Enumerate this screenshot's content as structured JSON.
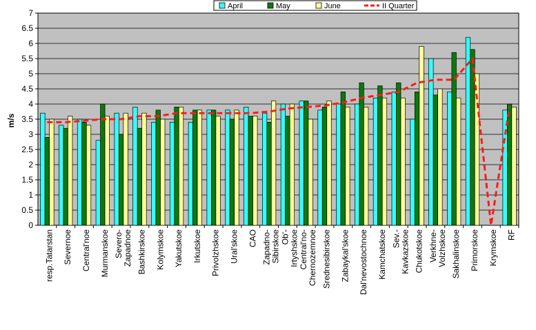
{
  "chart_data": {
    "type": "bar",
    "ylabel": "m/s",
    "ylim": [
      0,
      7
    ],
    "ytick_step": 0.5,
    "yticks": [
      "0",
      "0.5",
      "1",
      "1.5",
      "2",
      "2.5",
      "3",
      "3.5",
      "4",
      "4.5",
      "5",
      "5.5",
      "6",
      "6.5",
      "7"
    ],
    "grid": true,
    "legend_position": "top-right",
    "categories": [
      "resp.Tatarstan",
      "Severnoe",
      "Central'noe",
      "Murmanskoe",
      "Severo-\nZapadnoe",
      "Bashkirskoe",
      "Kolymskoe",
      "Yakutskoe",
      "Irkutskoe",
      "Privolzhskoe",
      "Ural'skoe",
      "CAO",
      "Zapadno-\nSibirskoe",
      "Ob'-\nIrtyshskoe",
      "Central'no-\nChernozemnoe",
      "Srednesibirskoe",
      "Zabaykal'skoe",
      "Dal'nevostochnoe",
      "Kamchatskoe",
      "Sev.-\nKavkazskoe",
      "Chukotskoe",
      "Verkhne-\nVolzhskoe",
      "Sakhalinskoe",
      "Primorskoe",
      "Krymskoe",
      "RF"
    ],
    "series": [
      {
        "name": "April",
        "color": "#33ffff",
        "values": [
          3.7,
          3.3,
          3.5,
          2.8,
          3.7,
          3.9,
          3.4,
          3.4,
          3.4,
          3.8,
          3.8,
          3.9,
          3.7,
          4.0,
          4.1,
          3.8,
          4.0,
          4.0,
          4.2,
          4.4,
          3.5,
          5.5,
          4.4,
          6.2,
          null,
          3.8
        ]
      },
      {
        "name": "May",
        "color": "#0b7a0b",
        "values": [
          2.9,
          3.2,
          3.4,
          4.0,
          3.0,
          3.2,
          3.8,
          3.9,
          3.8,
          3.8,
          3.5,
          3.6,
          3.4,
          3.6,
          4.1,
          3.9,
          4.4,
          4.7,
          4.6,
          4.7,
          4.4,
          4.3,
          5.7,
          5.8,
          null,
          4.0
        ]
      },
      {
        "name": "June",
        "color": "#ffff99",
        "values": [
          3.5,
          3.6,
          3.3,
          3.6,
          3.7,
          3.7,
          3.5,
          3.9,
          3.8,
          3.6,
          3.8,
          3.6,
          4.1,
          4.0,
          3.5,
          4.1,
          3.9,
          3.9,
          4.2,
          4.2,
          5.9,
          4.5,
          4.2,
          5.0,
          null,
          3.9
        ]
      },
      {
        "name": "II Quarter",
        "color": "#ff1a1a",
        "type": "line",
        "values": [
          3.4,
          3.4,
          3.45,
          3.5,
          3.5,
          3.6,
          3.6,
          3.7,
          3.7,
          3.7,
          3.7,
          3.7,
          3.75,
          3.85,
          3.9,
          3.95,
          4.05,
          4.2,
          4.3,
          4.4,
          4.7,
          4.8,
          4.8,
          5.5,
          0,
          3.9
        ]
      }
    ]
  }
}
